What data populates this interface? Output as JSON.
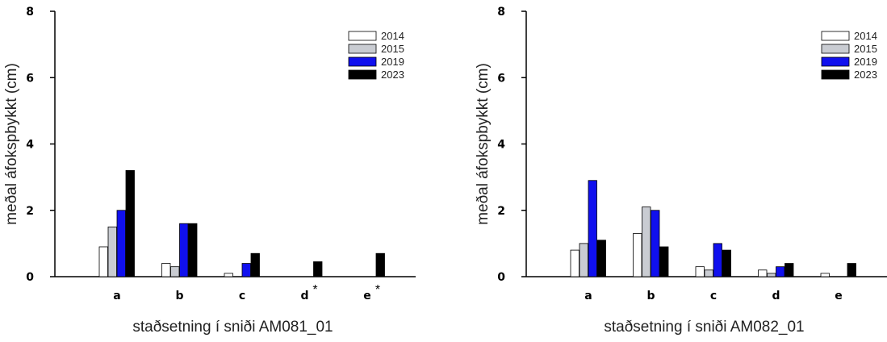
{
  "colors": {
    "2014": "#ffffff",
    "2015": "#c9ccd2",
    "2019": "#1010ee",
    "2023": "#000000",
    "axis": "#000000"
  },
  "chart_data": [
    {
      "type": "bar",
      "title": "",
      "xlabel": "staðsetning í sniði AM081_01",
      "ylabel": "meðal áfokspbykkt (cm)",
      "ylim": [
        0,
        8
      ],
      "yticks": [
        "0",
        "2",
        "4",
        "6",
        "8"
      ],
      "categories": [
        "a",
        "b",
        "c",
        "d",
        "e"
      ],
      "annotations": [
        "",
        "",
        "",
        "*",
        "*"
      ],
      "legend_position": "top-right",
      "series": [
        {
          "name": "2014",
          "values": [
            0.9,
            0.4,
            0.1,
            0,
            0
          ]
        },
        {
          "name": "2015",
          "values": [
            1.5,
            0.3,
            0,
            0,
            0
          ]
        },
        {
          "name": "2019",
          "values": [
            2.0,
            1.6,
            0.4,
            0,
            0
          ]
        },
        {
          "name": "2023",
          "values": [
            3.2,
            1.6,
            0.7,
            0.45,
            0.7
          ]
        }
      ]
    },
    {
      "type": "bar",
      "title": "",
      "xlabel": "staðsetning í sniði AM082_01",
      "ylabel": "meðal áfokspbykkt (cm)",
      "ylim": [
        0,
        8
      ],
      "yticks": [
        "0",
        "2",
        "4",
        "6",
        "8"
      ],
      "categories": [
        "a",
        "b",
        "c",
        "d",
        "e"
      ],
      "annotations": [
        "",
        "",
        "",
        "",
        ""
      ],
      "legend_position": "top-right",
      "series": [
        {
          "name": "2014",
          "values": [
            0.8,
            1.3,
            0.3,
            0.2,
            0.1
          ]
        },
        {
          "name": "2015",
          "values": [
            1.0,
            2.1,
            0.2,
            0.1,
            0
          ]
        },
        {
          "name": "2019",
          "values": [
            2.9,
            2.0,
            1.0,
            0.3,
            0
          ]
        },
        {
          "name": "2023",
          "values": [
            1.1,
            0.9,
            0.8,
            0.4,
            0.4
          ]
        }
      ]
    }
  ]
}
